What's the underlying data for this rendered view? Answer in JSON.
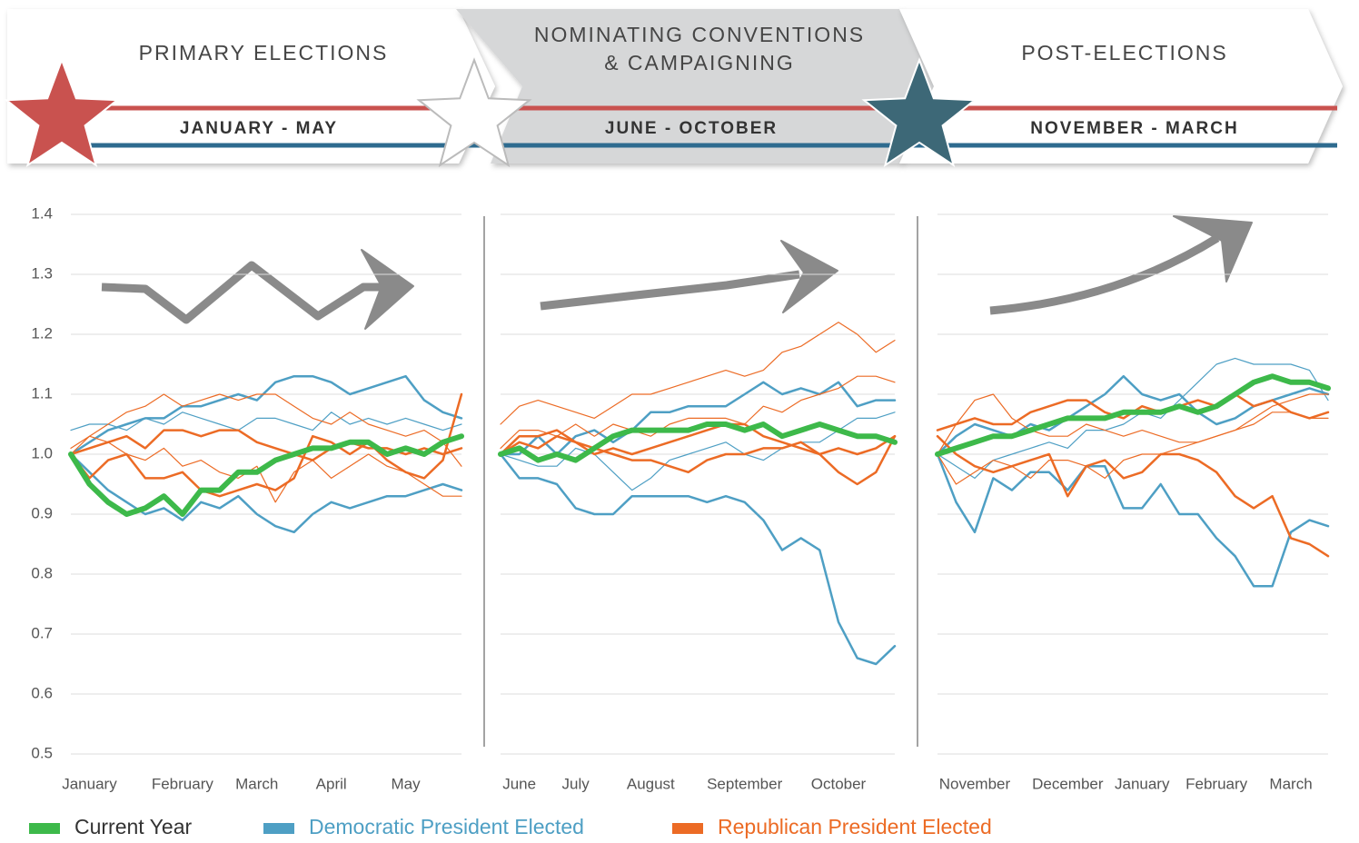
{
  "header": {
    "sections": [
      {
        "title": [
          "PRIMARY ELECTIONS"
        ],
        "dates": "JANUARY - MAY"
      },
      {
        "title": [
          "NOMINATING CONVENTIONS",
          "& CAMPAIGNING"
        ],
        "dates": "JUNE - OCTOBER"
      },
      {
        "title": [
          "POST-ELECTIONS"
        ],
        "dates": "NOVEMBER - MARCH"
      }
    ]
  },
  "legend": [
    {
      "name": "Current Year",
      "color": "#3db94a"
    },
    {
      "name": "Democratic President Elected",
      "color": "#4e9fc4"
    },
    {
      "name": "Republican President Elected",
      "color": "#ec6b25"
    }
  ],
  "chart_data": [
    {
      "type": "line",
      "y_tick_labels": true,
      "grid": true,
      "ylim": [
        0.5,
        1.4
      ],
      "yticks": [
        0.5,
        0.6,
        0.7,
        0.8,
        0.9,
        {
          "value": 1,
          "label": "1.0"
        },
        1.1,
        1.2,
        1.3,
        1.4
      ],
      "categories": [
        null,
        "January",
        null,
        null,
        null,
        null,
        "February",
        null,
        null,
        null,
        "March",
        null,
        null,
        null,
        "April",
        null,
        null,
        null,
        "May",
        null,
        null,
        null
      ],
      "series": [
        {
          "color": "#4e9fc4",
          "width": 2.5,
          "values": [
            1.0,
            1.02,
            1.04,
            1.05,
            1.06,
            1.06,
            1.08,
            1.08,
            1.09,
            1.1,
            1.09,
            1.12,
            1.13,
            1.13,
            1.12,
            1.1,
            1.11,
            1.12,
            1.13,
            1.09,
            1.07,
            1.06
          ]
        },
        {
          "color": "#4e9fc4",
          "width": 2.5,
          "values": [
            1.0,
            0.97,
            0.94,
            0.92,
            0.9,
            0.91,
            0.89,
            0.92,
            0.91,
            0.93,
            0.9,
            0.88,
            0.87,
            0.9,
            0.92,
            0.91,
            0.92,
            0.93,
            0.93,
            0.94,
            0.95,
            0.94
          ]
        },
        {
          "color": "#4e9fc4",
          "width": 1.2,
          "values": [
            1.04,
            1.05,
            1.05,
            1.04,
            1.06,
            1.05,
            1.07,
            1.06,
            1.05,
            1.04,
            1.06,
            1.06,
            1.05,
            1.04,
            1.07,
            1.05,
            1.06,
            1.05,
            1.06,
            1.05,
            1.04,
            1.05
          ]
        },
        {
          "color": "#ec6b25",
          "width": 2.5,
          "values": [
            1.0,
            1.01,
            1.02,
            1.03,
            1.01,
            1.04,
            1.04,
            1.03,
            1.04,
            1.04,
            1.02,
            1.01,
            1.0,
            0.99,
            1.01,
            1.02,
            1.01,
            1.01,
            1.0,
            1.01,
            1.0,
            1.01
          ]
        },
        {
          "color": "#ec6b25",
          "width": 2.5,
          "values": [
            1.0,
            0.96,
            0.99,
            1.0,
            0.96,
            0.96,
            0.97,
            0.94,
            0.93,
            0.94,
            0.95,
            0.94,
            0.96,
            1.03,
            1.02,
            1.0,
            1.02,
            0.99,
            0.97,
            0.96,
            0.99,
            1.1
          ]
        },
        {
          "color": "#ec6b25",
          "width": 1.2,
          "values": [
            1.01,
            1.03,
            1.05,
            1.07,
            1.08,
            1.1,
            1.08,
            1.09,
            1.1,
            1.09,
            1.1,
            1.1,
            1.08,
            1.06,
            1.05,
            1.07,
            1.05,
            1.04,
            1.03,
            1.04,
            1.02,
            0.98
          ]
        },
        {
          "color": "#ec6b25",
          "width": 1.2,
          "values": [
            1.0,
            1.03,
            1.02,
            1.0,
            0.99,
            1.01,
            0.98,
            0.99,
            0.97,
            0.96,
            0.98,
            0.92,
            0.97,
            0.99,
            0.96,
            0.98,
            1.0,
            0.98,
            0.97,
            0.95,
            0.93,
            0.93
          ]
        },
        {
          "color": "#3db94a",
          "width": 6,
          "values": [
            1.0,
            0.95,
            0.92,
            0.9,
            0.91,
            0.93,
            0.9,
            0.94,
            0.94,
            0.97,
            0.97,
            0.99,
            1.0,
            1.01,
            1.01,
            1.02,
            1.02,
            1.0,
            1.01,
            1.0,
            1.02,
            1.03
          ]
        }
      ]
    },
    {
      "type": "line",
      "y_tick_labels": false,
      "grid": true,
      "ylim": [
        0.5,
        1.4
      ],
      "yticks": [
        0.5,
        0.6,
        0.7,
        0.8,
        0.9,
        {
          "value": 1,
          "label": "1.0"
        },
        1.1,
        1.2,
        1.3,
        1.4
      ],
      "categories": [
        null,
        "June",
        null,
        null,
        "July",
        null,
        null,
        null,
        "August",
        null,
        null,
        null,
        null,
        "September",
        null,
        null,
        null,
        null,
        "October",
        null,
        null,
        null
      ],
      "series": [
        {
          "color": "#4e9fc4",
          "width": 2.5,
          "values": [
            1.0,
            0.96,
            0.96,
            0.95,
            0.91,
            0.9,
            0.9,
            0.93,
            0.93,
            0.93,
            0.93,
            0.92,
            0.93,
            0.92,
            0.89,
            0.84,
            0.86,
            0.84,
            0.72,
            0.66,
            0.65,
            0.68
          ]
        },
        {
          "color": "#4e9fc4",
          "width": 2.5,
          "values": [
            1.0,
            1.0,
            1.03,
            1.0,
            1.03,
            1.04,
            1.02,
            1.04,
            1.07,
            1.07,
            1.08,
            1.08,
            1.08,
            1.1,
            1.12,
            1.1,
            1.11,
            1.1,
            1.12,
            1.08,
            1.09,
            1.09
          ]
        },
        {
          "color": "#4e9fc4",
          "width": 1.2,
          "values": [
            1.0,
            0.99,
            0.98,
            0.98,
            1.01,
            1.0,
            0.97,
            0.94,
            0.96,
            0.99,
            1.0,
            1.01,
            1.02,
            1.0,
            0.99,
            1.01,
            1.02,
            1.02,
            1.04,
            1.06,
            1.06,
            1.07
          ]
        },
        {
          "color": "#ec6b25",
          "width": 2.5,
          "values": [
            1.0,
            1.03,
            1.03,
            1.04,
            1.02,
            1.01,
            1.0,
            0.99,
            0.99,
            0.98,
            0.97,
            0.99,
            1.0,
            1.0,
            1.01,
            1.01,
            1.02,
            1.0,
            0.97,
            0.95,
            0.97,
            1.03
          ]
        },
        {
          "color": "#ec6b25",
          "width": 1.2,
          "values": [
            1.05,
            1.08,
            1.09,
            1.08,
            1.07,
            1.06,
            1.08,
            1.1,
            1.1,
            1.11,
            1.12,
            1.13,
            1.14,
            1.13,
            1.14,
            1.17,
            1.18,
            1.2,
            1.22,
            1.2,
            1.17,
            1.19
          ]
        },
        {
          "color": "#ec6b25",
          "width": 1.2,
          "values": [
            1.01,
            1.04,
            1.04,
            1.03,
            1.05,
            1.03,
            1.05,
            1.04,
            1.03,
            1.05,
            1.06,
            1.06,
            1.06,
            1.05,
            1.08,
            1.07,
            1.09,
            1.1,
            1.11,
            1.13,
            1.13,
            1.12
          ]
        },
        {
          "color": "#ec6b25",
          "width": 2.5,
          "values": [
            1.0,
            1.02,
            1.01,
            1.03,
            1.02,
            1.0,
            1.01,
            1.0,
            1.01,
            1.02,
            1.03,
            1.04,
            1.05,
            1.05,
            1.03,
            1.02,
            1.01,
            1.0,
            1.01,
            1.0,
            1.01,
            1.03
          ]
        },
        {
          "color": "#3db94a",
          "width": 6,
          "values": [
            1.0,
            1.01,
            0.99,
            1.0,
            0.99,
            1.01,
            1.03,
            1.04,
            1.04,
            1.04,
            1.04,
            1.05,
            1.05,
            1.04,
            1.05,
            1.03,
            1.04,
            1.05,
            1.04,
            1.03,
            1.03,
            1.02
          ]
        }
      ]
    },
    {
      "type": "line",
      "y_tick_labels": false,
      "grid": true,
      "ylim": [
        0.5,
        1.4
      ],
      "yticks": [
        0.5,
        0.6,
        0.7,
        0.8,
        0.9,
        {
          "value": 1,
          "label": "1.0"
        },
        1.1,
        1.2,
        1.3,
        1.4
      ],
      "categories": [
        null,
        null,
        "November",
        null,
        null,
        null,
        null,
        "December",
        null,
        null,
        null,
        "January",
        null,
        null,
        null,
        "February",
        null,
        null,
        null,
        "March",
        null,
        null
      ],
      "series": [
        {
          "color": "#4e9fc4",
          "width": 2.5,
          "values": [
            1.0,
            0.92,
            0.87,
            0.96,
            0.94,
            0.97,
            0.97,
            0.94,
            0.98,
            0.98,
            0.91,
            0.91,
            0.95,
            0.9,
            0.9,
            0.86,
            0.83,
            0.78,
            0.78,
            0.87,
            0.89,
            0.88
          ]
        },
        {
          "color": "#4e9fc4",
          "width": 1.2,
          "values": [
            1.0,
            0.98,
            0.96,
            0.99,
            1.0,
            1.01,
            1.02,
            1.01,
            1.04,
            1.04,
            1.05,
            1.07,
            1.06,
            1.09,
            1.12,
            1.15,
            1.16,
            1.15,
            1.15,
            1.15,
            1.14,
            1.09
          ]
        },
        {
          "color": "#4e9fc4",
          "width": 2.5,
          "values": [
            1.0,
            1.03,
            1.05,
            1.04,
            1.03,
            1.05,
            1.04,
            1.06,
            1.08,
            1.1,
            1.13,
            1.1,
            1.09,
            1.1,
            1.07,
            1.05,
            1.06,
            1.08,
            1.09,
            1.1,
            1.11,
            1.1
          ]
        },
        {
          "color": "#ec6b25",
          "width": 2.5,
          "values": [
            1.04,
            1.05,
            1.06,
            1.05,
            1.05,
            1.07,
            1.08,
            1.09,
            1.09,
            1.07,
            1.06,
            1.08,
            1.07,
            1.08,
            1.09,
            1.08,
            1.1,
            1.08,
            1.09,
            1.07,
            1.06,
            1.07
          ]
        },
        {
          "color": "#ec6b25",
          "width": 2.5,
          "values": [
            1.03,
            1.0,
            0.98,
            0.97,
            0.98,
            0.99,
            1.0,
            0.93,
            0.98,
            0.99,
            0.96,
            0.97,
            1.0,
            1.0,
            0.99,
            0.97,
            0.93,
            0.91,
            0.93,
            0.86,
            0.85,
            0.83
          ]
        },
        {
          "color": "#ec6b25",
          "width": 1.2,
          "values": [
            1.0,
            1.05,
            1.09,
            1.1,
            1.06,
            1.04,
            1.03,
            1.03,
            1.05,
            1.04,
            1.03,
            1.04,
            1.03,
            1.02,
            1.02,
            1.03,
            1.04,
            1.06,
            1.08,
            1.09,
            1.1,
            1.1
          ]
        },
        {
          "color": "#ec6b25",
          "width": 1.2,
          "values": [
            1.0,
            0.95,
            0.97,
            0.99,
            0.98,
            0.96,
            0.99,
            0.99,
            0.98,
            0.96,
            0.99,
            1.0,
            1.0,
            1.01,
            1.02,
            1.03,
            1.04,
            1.05,
            1.07,
            1.07,
            1.06,
            1.06
          ]
        },
        {
          "color": "#3db94a",
          "width": 6,
          "values": [
            1.0,
            1.01,
            1.02,
            1.03,
            1.03,
            1.04,
            1.05,
            1.06,
            1.06,
            1.06,
            1.07,
            1.07,
            1.07,
            1.08,
            1.07,
            1.08,
            1.1,
            1.12,
            1.13,
            1.12,
            1.12,
            1.11
          ]
        }
      ]
    }
  ]
}
